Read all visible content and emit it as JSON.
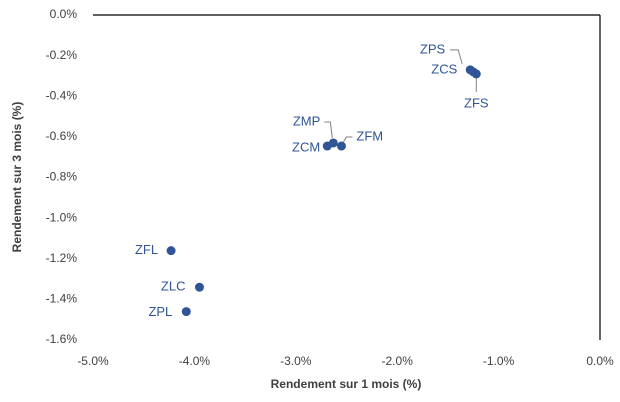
{
  "chart_data": {
    "type": "scatter",
    "x_label": "Rendement sur 1 mois (%)",
    "y_label": "Rendement sur 3 mois (%)",
    "color": "#2f5597",
    "point_labels": [
      "ZPS",
      "ZCS",
      "ZFS",
      "ZMP",
      "ZCM",
      "ZFM",
      "ZFL",
      "ZLC",
      "ZPL"
    ],
    "x": [
      -1.28,
      -1.25,
      -1.22,
      -2.63,
      -2.69,
      -2.55,
      -4.23,
      -3.95,
      -4.08
    ],
    "values": [
      -0.27,
      -0.28,
      -0.29,
      -0.63,
      -0.645,
      -0.645,
      -1.16,
      -1.34,
      -1.46
    ],
    "xlim": [
      -5,
      0
    ],
    "ylim": [
      -1.6,
      0
    ],
    "xticks": [
      {
        "value": -5,
        "label": "-5.0%"
      },
      {
        "value": -4,
        "label": "-4.0%"
      },
      {
        "value": -3,
        "label": "-3.0%"
      },
      {
        "value": -2,
        "label": "-2.0%"
      },
      {
        "value": -1,
        "label": "-1.0%"
      },
      {
        "value": 0,
        "label": "0.0%"
      }
    ],
    "yticks": [
      {
        "value": 0,
        "label": "0.0%"
      },
      {
        "value": -0.2,
        "label": "-0.2%"
      },
      {
        "value": -0.4,
        "label": "-0.4%"
      },
      {
        "value": -0.6,
        "label": "-0.6%"
      },
      {
        "value": -0.8,
        "label": "-0.8%"
      },
      {
        "value": -1.0,
        "label": "-1.0%"
      },
      {
        "value": -1.2,
        "label": "-1.2%"
      },
      {
        "value": -1.4,
        "label": "-1.4%"
      },
      {
        "value": -1.6,
        "label": "-1.6%"
      }
    ],
    "grid": false
  }
}
